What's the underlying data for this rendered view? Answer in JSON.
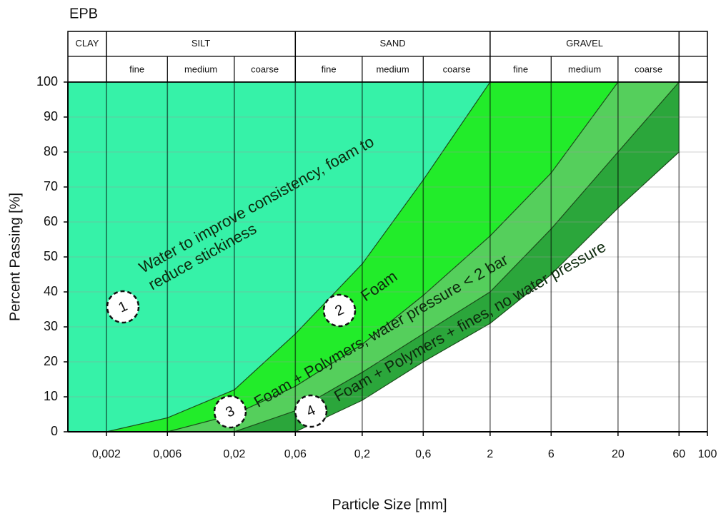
{
  "chart_data": {
    "type": "zones",
    "title": "EPB",
    "x_label": "Particle Size [mm]",
    "y_label": "Percent Passing [%]",
    "x_log": true,
    "grid": true,
    "xlim": [
      0.001,
      100
    ],
    "ylim": [
      0,
      100
    ],
    "xticks": [
      {
        "value": 0.002,
        "label": "0,002"
      },
      {
        "value": 0.006,
        "label": "0,006"
      },
      {
        "value": 0.02,
        "label": "0,02"
      },
      {
        "value": 0.06,
        "label": "0,06"
      },
      {
        "value": 0.2,
        "label": "0,2"
      },
      {
        "value": 0.6,
        "label": "0,6"
      },
      2,
      6,
      20,
      60,
      100
    ],
    "yticks": [
      0,
      10,
      20,
      30,
      40,
      50,
      60,
      70,
      80,
      90,
      100
    ],
    "soil_classes": [
      {
        "label": "CLAY",
        "range": [
          0.001,
          0.002
        ]
      },
      {
        "label": "SILT",
        "range": [
          0.002,
          0.06
        ],
        "subdivisions": [
          {
            "label": "fine",
            "range": [
              0.002,
              0.006
            ]
          },
          {
            "label": "medium",
            "range": [
              0.006,
              0.02
            ]
          },
          {
            "label": "coarse",
            "range": [
              0.02,
              0.06
            ]
          }
        ]
      },
      {
        "label": "SAND",
        "range": [
          0.06,
          2
        ],
        "subdivisions": [
          {
            "label": "fine",
            "range": [
              0.06,
              0.2
            ]
          },
          {
            "label": "medium",
            "range": [
              0.2,
              0.6
            ]
          },
          {
            "label": "coarse",
            "range": [
              0.6,
              2
            ]
          }
        ]
      },
      {
        "label": "GRAVEL",
        "range": [
          2,
          60
        ],
        "subdivisions": [
          {
            "label": "fine",
            "range": [
              2,
              6
            ]
          },
          {
            "label": "medium",
            "range": [
              6,
              20
            ]
          },
          {
            "label": "coarse",
            "range": [
              20,
              60
            ]
          }
        ]
      }
    ],
    "zones": [
      {
        "number": "1",
        "annotation": [
          "Water to improve consistency, foam to",
          "reduce stickiness"
        ],
        "color": "#36f2a8",
        "x": [
          0.002,
          0.006,
          0.02,
          0.06,
          0.2,
          0.6,
          2
        ],
        "values": [
          0,
          4,
          12,
          28,
          48,
          72,
          100
        ]
      },
      {
        "number": "2",
        "annotation": [
          "Foam"
        ],
        "color": "#22ec2a",
        "x": [
          0.006,
          0.02,
          0.06,
          0.2,
          0.6,
          2,
          6,
          20
        ],
        "values": [
          0,
          5,
          13,
          25,
          39,
          56,
          74,
          100
        ]
      },
      {
        "number": "3",
        "annotation": [
          "Foam + Polymers, water pressure < 2 bar"
        ],
        "color": "#55cf5c",
        "x": [
          0.02,
          0.06,
          0.2,
          0.6,
          2,
          6,
          20,
          60
        ],
        "values": [
          0,
          6,
          17,
          28,
          40,
          58,
          80,
          100
        ]
      },
      {
        "number": "4",
        "annotation": [
          "Foam + Polymers + fines, no water pressure"
        ],
        "color": "#2ba63b",
        "x": [
          0.06,
          0.2,
          0.6,
          2,
          6,
          20,
          60
        ],
        "values": [
          0,
          9,
          20,
          31,
          45,
          64,
          80
        ]
      }
    ]
  }
}
